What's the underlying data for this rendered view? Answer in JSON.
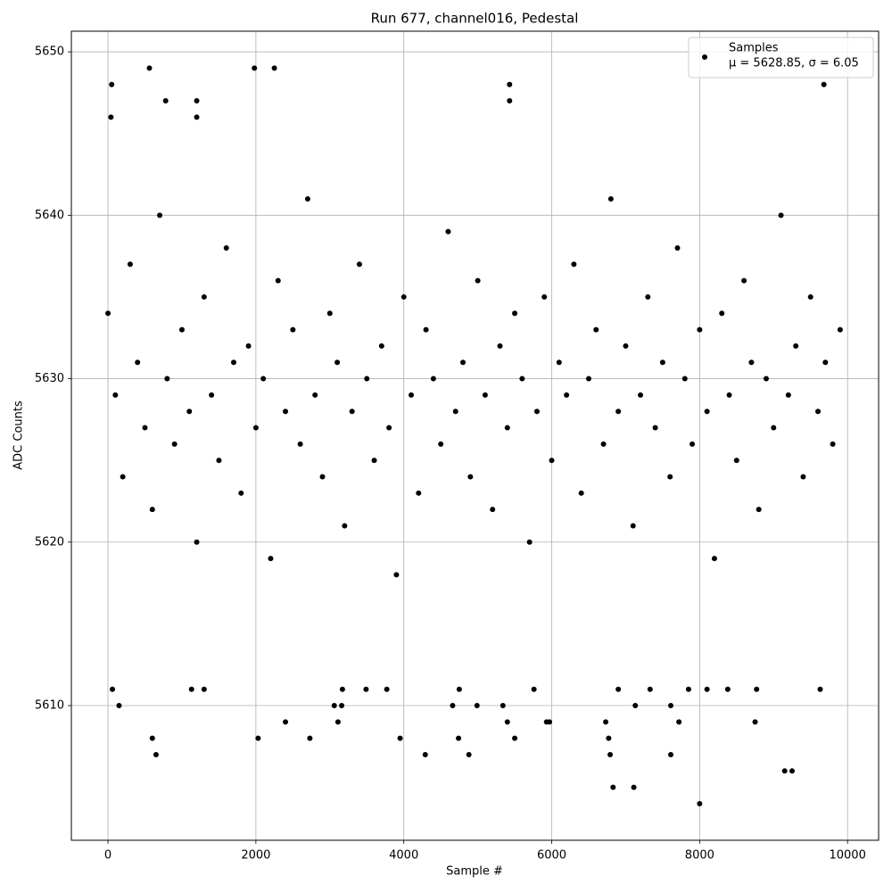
{
  "chart_data": {
    "type": "scatter",
    "title": "Run 677, channel016, Pedestal",
    "x_label": "Sample #",
    "y_label": "ADC Counts",
    "xlim": [
      -495,
      10420
    ],
    "ylim": [
      5601.76,
      5651.26
    ],
    "xticks": [
      0,
      2000,
      4000,
      6000,
      8000,
      10000
    ],
    "yticks": [
      5610,
      5620,
      5630,
      5640,
      5650
    ],
    "grid": true,
    "legend_position": "upper right",
    "legend_note": "μ = 5628.85, σ = 6.05",
    "x": [
      0,
      100,
      200,
      300,
      400,
      500,
      600,
      700,
      800,
      900,
      1000,
      1100,
      1200,
      1300,
      1400,
      1500,
      1600,
      1700,
      1800,
      1900,
      2000,
      2100,
      2200,
      2300,
      2400,
      2500,
      2600,
      2700,
      2800,
      2900,
      3000,
      3100,
      3200,
      3300,
      3400,
      3500,
      3600,
      3700,
      3800,
      3900,
      4000,
      4100,
      4200,
      4300,
      4400,
      4500,
      4600,
      4700,
      4800,
      4900,
      5000,
      5100,
      5200,
      5300,
      5400,
      5500,
      5600,
      5700,
      5800,
      5900,
      6000,
      6100,
      6200,
      6300,
      6400,
      6500,
      6600,
      6700,
      6800,
      6900,
      7000,
      7100,
      7200,
      7300,
      7400,
      7500,
      7600,
      7700,
      7800,
      7900,
      8000,
      8100,
      8200,
      8300,
      8400,
      8500,
      8600,
      8700,
      8800,
      8900,
      9000,
      9100,
      9200,
      9300,
      9400,
      9500,
      9600,
      9700,
      9800,
      9900,
      40,
      50,
      560,
      1980,
      2250,
      5430,
      5430,
      9680,
      780,
      1200,
      1200,
      8000,
      6830,
      7110,
      9150,
      9250,
      650,
      4290,
      4880,
      6790,
      7610,
      600,
      2030,
      2730,
      3950,
      4740,
      5500,
      6770,
      2400,
      3110,
      5400,
      5930,
      6730,
      7720,
      8750,
      5970,
      150,
      3060,
      3160,
      4660,
      4990,
      5340,
      7130,
      7610,
      60,
      1130,
      1300,
      3170,
      3490,
      3770,
      4750,
      5760,
      6900,
      7330,
      7850,
      8100,
      8380,
      8770,
      9630
    ],
    "series": [
      {
        "name": "Samples",
        "color": "#000000",
        "values": [
          5634,
          5629,
          5624,
          5637,
          5631,
          5627,
          5622,
          5640,
          5630,
          5626,
          5633,
          5628,
          5620,
          5635,
          5629,
          5625,
          5638,
          5631,
          5623,
          5632,
          5627,
          5630,
          5619,
          5636,
          5628,
          5633,
          5626,
          5641,
          5629,
          5624,
          5634,
          5631,
          5621,
          5628,
          5637,
          5630,
          5625,
          5632,
          5627,
          5618,
          5635,
          5629,
          5623,
          5633,
          5630,
          5626,
          5639,
          5628,
          5631,
          5624,
          5636,
          5629,
          5622,
          5632,
          5627,
          5634,
          5630,
          5620,
          5628,
          5635,
          5625,
          5631,
          5629,
          5637,
          5623,
          5630,
          5633,
          5626,
          5641,
          5628,
          5632,
          5621,
          5629,
          5635,
          5627,
          5631,
          5624,
          5638,
          5630,
          5626,
          5633,
          5628,
          5619,
          5634,
          5629,
          5625,
          5636,
          5631,
          5622,
          5630,
          5627,
          5640,
          5629,
          5632,
          5624,
          5635,
          5628,
          5631,
          5626,
          5633,
          5646,
          5648,
          5649,
          5649,
          5649,
          5648,
          5647,
          5648,
          5647,
          5647,
          5646,
          5604,
          5605,
          5605,
          5606,
          5606,
          5607,
          5607,
          5607,
          5607,
          5607,
          5608,
          5608,
          5608,
          5608,
          5608,
          5608,
          5608,
          5609,
          5609,
          5609,
          5609,
          5609,
          5609,
          5609,
          5609,
          5610,
          5610,
          5610,
          5610,
          5610,
          5610,
          5610,
          5610,
          5611,
          5611,
          5611,
          5611,
          5611,
          5611,
          5611,
          5611,
          5611,
          5611,
          5611,
          5611,
          5611,
          5611,
          5611
        ]
      }
    ]
  }
}
